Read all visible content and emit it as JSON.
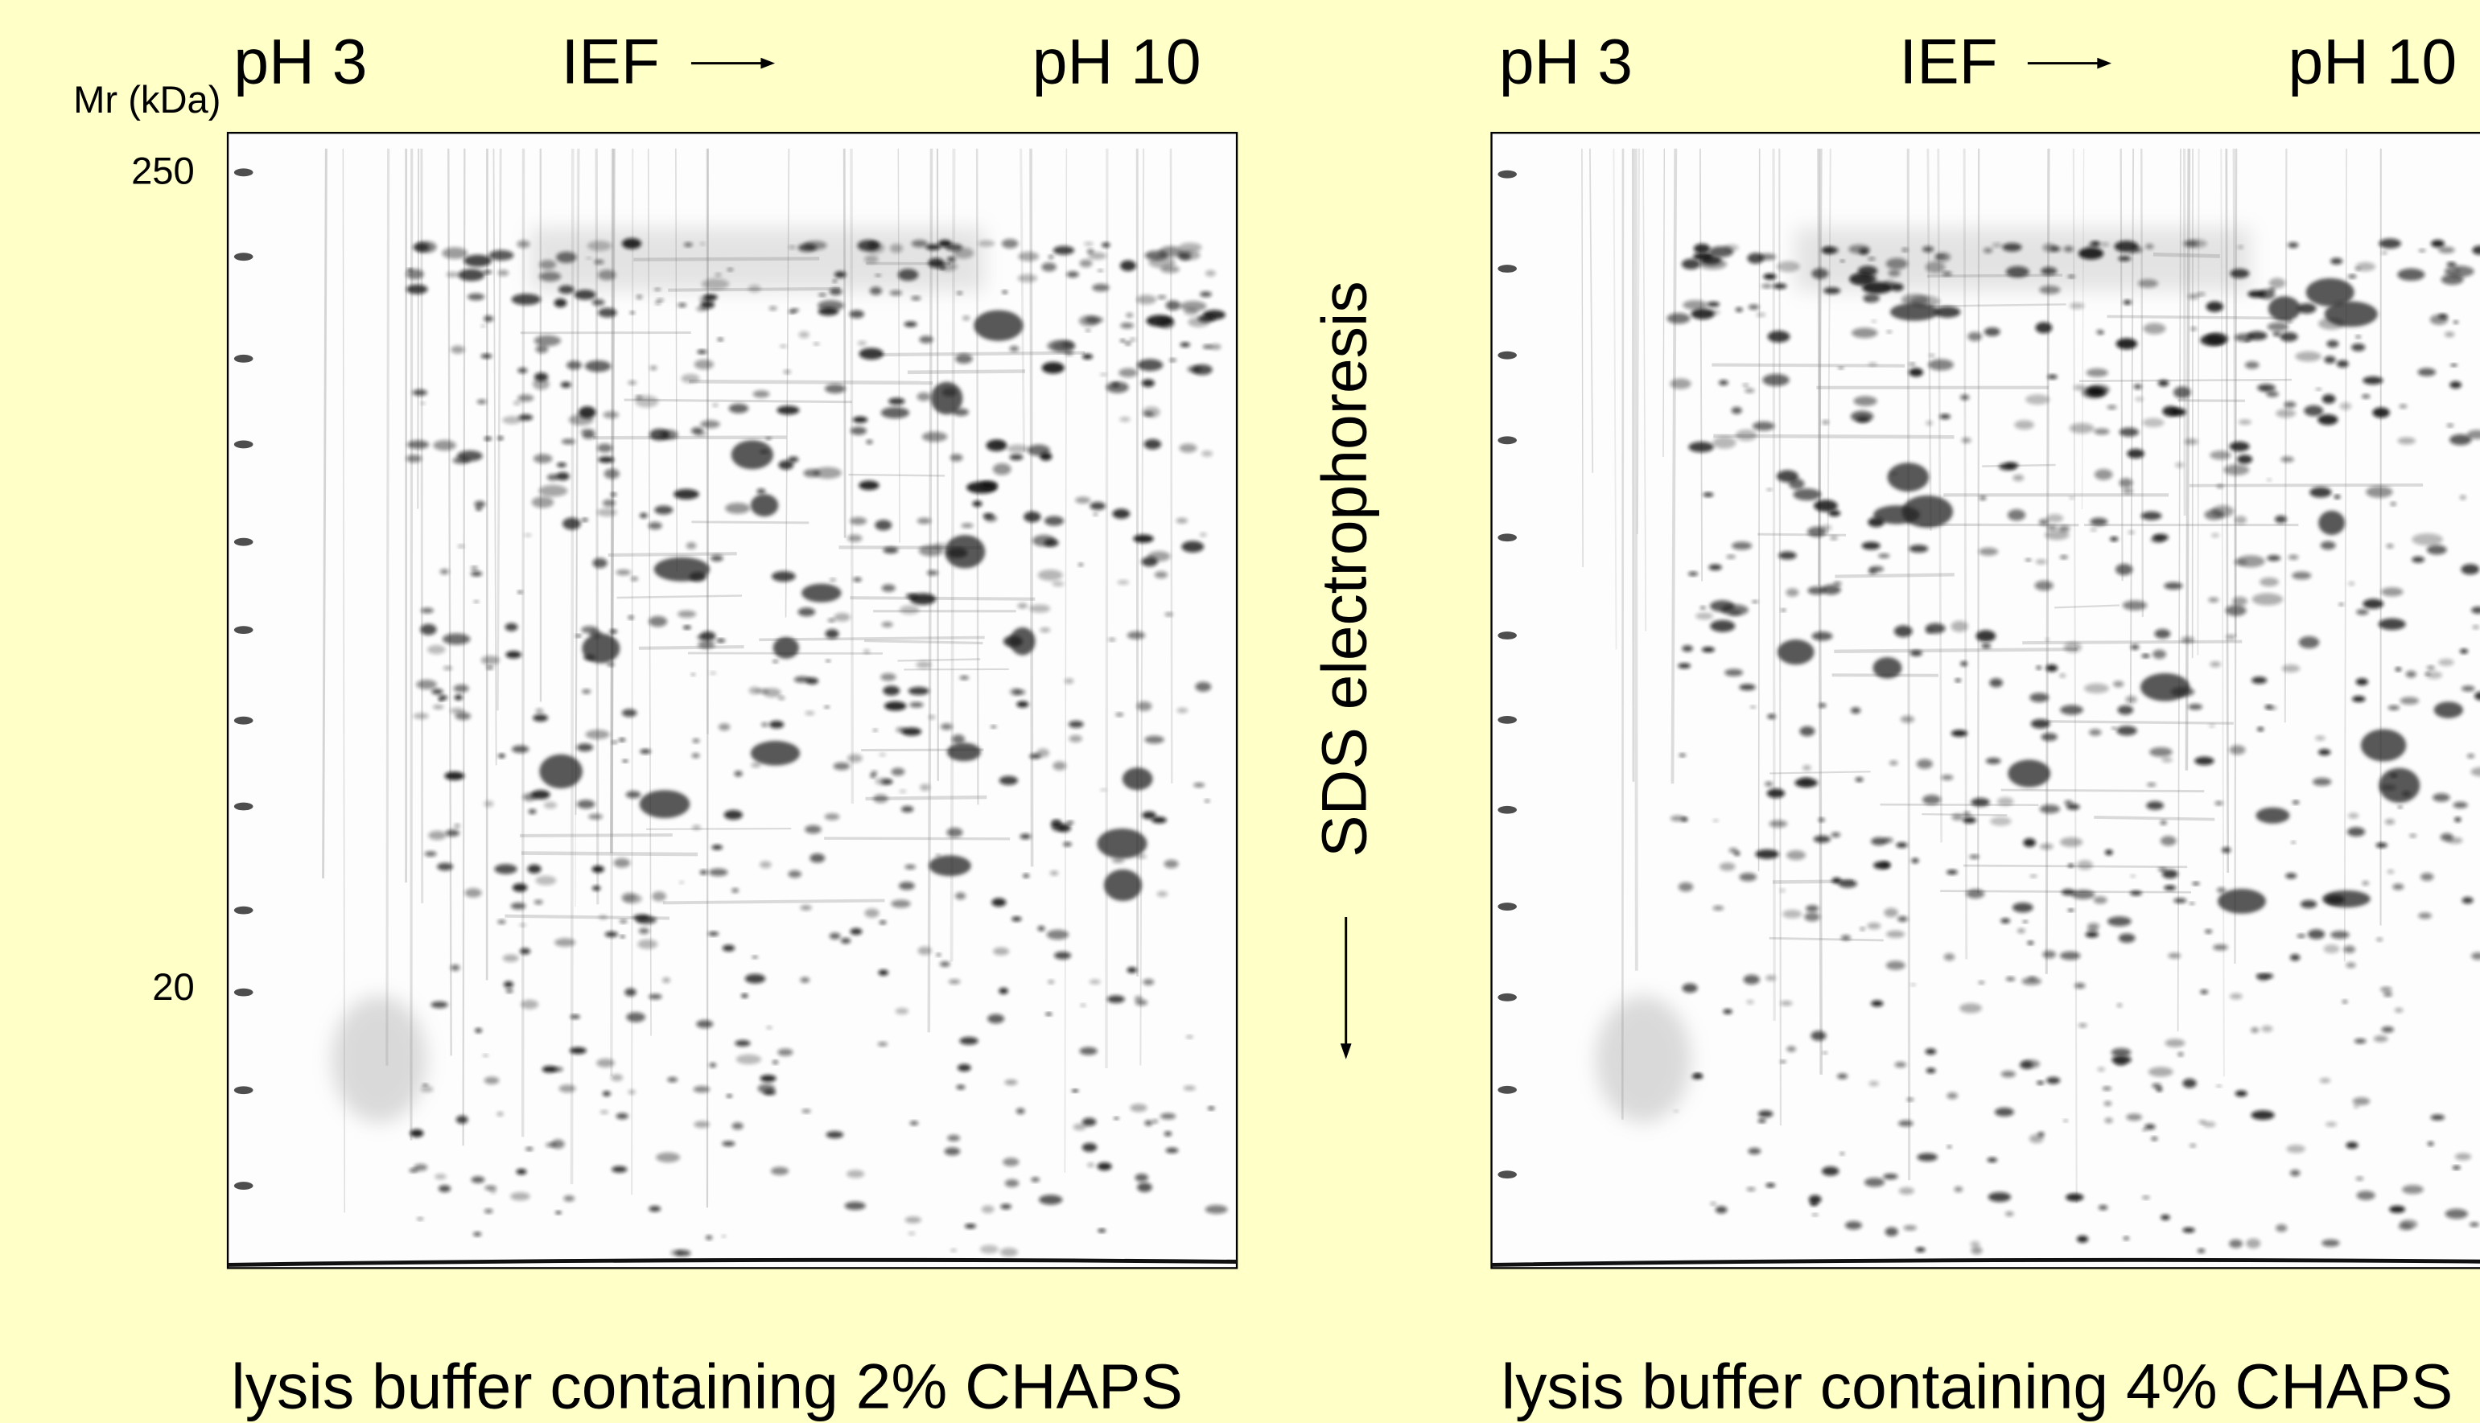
{
  "left_panel": {
    "mr_label": "Mr (kDa)",
    "marker_top": "250",
    "marker_bottom": "20",
    "ph_low": "pH 3",
    "ief": "IEF",
    "ph_high": "pH 10",
    "caption": "lysis buffer containing 2% CHAPS"
  },
  "center": {
    "sds_label": "SDS electrophoresis"
  },
  "right_panel": {
    "ph_low": "pH 3",
    "ief": "IEF",
    "ph_high": "pH 10",
    "caption": "lysis buffer containing 4% CHAPS"
  }
}
